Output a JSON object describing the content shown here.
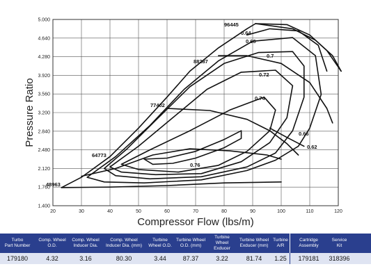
{
  "chart_data": {
    "type": "line",
    "title": "",
    "xlabel": "Compressor Flow (lbs/m)",
    "ylabel": "Pressure Ratio",
    "xlim": [
      20,
      120
    ],
    "ylim": [
      1.4,
      5.0
    ],
    "x_ticks": [
      "20",
      "30",
      "40",
      "50",
      "60",
      "70",
      "80",
      "90",
      "100",
      "110",
      "120"
    ],
    "y_ticks": [
      "1.400",
      "1.760",
      "2.120",
      "2.480",
      "2.840",
      "3.200",
      "3.560",
      "3.920",
      "4.280",
      "4.640",
      "5.000"
    ],
    "grid": true,
    "surge_line": [
      [
        23,
        1.75
      ],
      [
        30,
        1.95
      ],
      [
        40,
        2.35
      ],
      [
        50,
        2.9
      ],
      [
        60,
        3.5
      ],
      [
        68,
        4.0
      ],
      [
        78,
        4.45
      ],
      [
        88,
        4.82
      ],
      [
        91,
        4.92
      ]
    ],
    "choke_line": [
      [
        91,
        4.92
      ],
      [
        102,
        4.9
      ],
      [
        110,
        4.7
      ],
      [
        116,
        4.4
      ],
      [
        121,
        4.0
      ]
    ],
    "speed_lines": [
      {
        "label": "48963",
        "points": [
          [
            23,
            1.75
          ],
          [
            40,
            1.76
          ],
          [
            60,
            1.79
          ],
          [
            80,
            1.84
          ],
          [
            100,
            1.86
          ]
        ]
      },
      {
        "label": "64773",
        "points": [
          [
            30,
            1.97
          ],
          [
            42,
            2.12
          ],
          [
            55,
            2.38
          ],
          [
            68,
            2.5
          ],
          [
            82,
            2.46
          ],
          [
            95,
            2.38
          ],
          [
            100,
            2.3
          ]
        ]
      },
      {
        "label": "77402",
        "points": [
          [
            60,
            3.28
          ],
          [
            75,
            3.24
          ],
          [
            88,
            3.07
          ],
          [
            96,
            2.85
          ],
          [
            102,
            2.6
          ],
          [
            106,
            2.38
          ]
        ]
      },
      {
        "label": "88287",
        "points": [
          [
            78,
            4.3
          ],
          [
            88,
            4.3
          ],
          [
            100,
            4.15
          ],
          [
            110,
            3.78
          ],
          [
            116,
            3.28
          ],
          [
            118,
            3.0
          ]
        ]
      },
      {
        "label": "96445",
        "points": [
          [
            91,
            4.92
          ],
          [
            104,
            4.82
          ],
          [
            112,
            4.6
          ],
          [
            118,
            4.3
          ],
          [
            121,
            4.0
          ]
        ]
      }
    ],
    "efficiency_islands": [
      {
        "label": "0.76",
        "points": [
          [
            52,
            2.3
          ],
          [
            60,
            2.32
          ],
          [
            70,
            2.45
          ],
          [
            80,
            2.68
          ],
          [
            86,
            2.85
          ],
          [
            86,
            2.7
          ],
          [
            80,
            2.52
          ],
          [
            70,
            2.32
          ],
          [
            62,
            2.22
          ],
          [
            55,
            2.2
          ],
          [
            52,
            2.3
          ]
        ]
      },
      {
        "label": "0.74",
        "points": [
          [
            44,
            2.2
          ],
          [
            54,
            2.48
          ],
          [
            68,
            2.85
          ],
          [
            82,
            3.25
          ],
          [
            94,
            3.5
          ],
          [
            98,
            3.25
          ],
          [
            96,
            2.85
          ],
          [
            88,
            2.45
          ],
          [
            78,
            2.18
          ],
          [
            64,
            2.05
          ],
          [
            50,
            2.1
          ],
          [
            44,
            2.2
          ]
        ]
      },
      {
        "label": "0.72",
        "points": [
          [
            40,
            2.15
          ],
          [
            50,
            2.55
          ],
          [
            62,
            3.1
          ],
          [
            74,
            3.65
          ],
          [
            86,
            3.98
          ],
          [
            98,
            4.02
          ],
          [
            104,
            3.72
          ],
          [
            102,
            3.1
          ],
          [
            96,
            2.62
          ],
          [
            86,
            2.25
          ],
          [
            72,
            2.02
          ],
          [
            56,
            2.0
          ],
          [
            44,
            2.05
          ],
          [
            40,
            2.15
          ]
        ]
      },
      {
        "label": "0.7",
        "points": [
          [
            38,
            2.12
          ],
          [
            46,
            2.5
          ],
          [
            56,
            3.05
          ],
          [
            68,
            3.7
          ],
          [
            80,
            4.15
          ],
          [
            92,
            4.36
          ],
          [
            104,
            4.38
          ],
          [
            108,
            4.1
          ],
          [
            108,
            3.5
          ],
          [
            104,
            2.85
          ],
          [
            98,
            2.42
          ],
          [
            88,
            2.15
          ],
          [
            72,
            1.96
          ],
          [
            54,
            1.92
          ],
          [
            42,
            1.98
          ],
          [
            38,
            2.12
          ]
        ]
      },
      {
        "label": "0.66",
        "points": [
          [
            32,
            1.95
          ],
          [
            42,
            2.35
          ],
          [
            54,
            2.95
          ],
          [
            66,
            3.65
          ],
          [
            78,
            4.2
          ],
          [
            90,
            4.58
          ],
          [
            104,
            4.65
          ],
          [
            112,
            4.3
          ],
          [
            114,
            3.55
          ],
          [
            110,
            2.9
          ],
          [
            106,
            2.55
          ],
          [
            98,
            2.28
          ],
          [
            88,
            2.08
          ],
          [
            72,
            1.9
          ],
          [
            52,
            1.84
          ],
          [
            38,
            1.86
          ],
          [
            32,
            1.95
          ]
        ]
      },
      {
        "label": "0.64",
        "points": [
          [
            88,
            4.7
          ],
          [
            96,
            4.82
          ],
          [
            106,
            4.78
          ],
          [
            113,
            4.5
          ],
          [
            116,
            4.0
          ]
        ]
      },
      {
        "label": "0.62",
        "points": [
          [
            96,
            2.9
          ],
          [
            102,
            2.72
          ],
          [
            108,
            2.55
          ]
        ]
      }
    ],
    "annotations": [
      "96445",
      "0.64",
      "0.66",
      "0.7",
      "88287",
      "0.72",
      "0.74",
      "77402",
      "0.66",
      "0.62",
      "64773",
      "0.76",
      "48963"
    ]
  },
  "spec_table": {
    "headers": [
      [
        "Turbo",
        "Part Number"
      ],
      [
        "Comp. Wheel",
        "O.D."
      ],
      [
        "Comp. Wheel",
        "Inducer Dia."
      ],
      [
        "Comp. Wheel",
        "Inducer Dia. (mm)"
      ],
      [
        "Turbine",
        "Wheel O.D."
      ],
      [
        "Turbine Wheel",
        "O.D. (mm)"
      ],
      [
        "Turbine Wheel",
        "Exducer"
      ],
      [
        "Turbine Wheel",
        "Exducer (mm)"
      ],
      [
        "Turbine",
        "A/R"
      ],
      [
        "Cartridge",
        "Assembly"
      ],
      [
        "Service",
        "Kit"
      ]
    ],
    "values": [
      "179180",
      "4.32",
      "3.16",
      "80.30",
      "3.44",
      "87.37",
      "3.22",
      "81.74",
      "1.25",
      "179181",
      "318396"
    ]
  }
}
